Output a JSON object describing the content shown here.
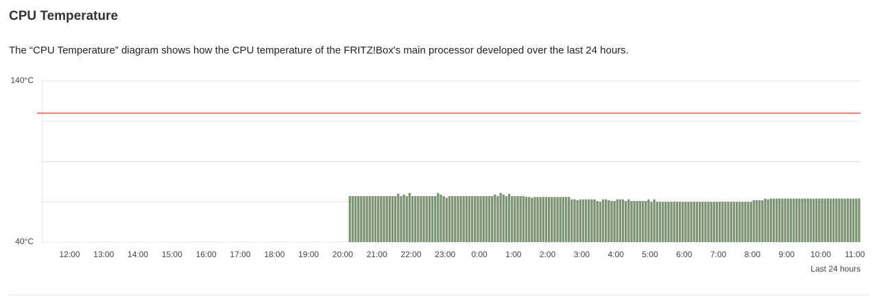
{
  "chart_data": {
    "type": "bar",
    "title": "CPU Temperature",
    "subtitle": "The “CPU Temperature” diagram shows how the CPU temperature of the FRITZ!Box's main processor developed over the last 24 hours.",
    "x_label": "Last 24 hours",
    "color": "#7b9473",
    "threshold": 120,
    "threshold_color": "#e0302c",
    "ylim": [
      40,
      140
    ],
    "yticks": [
      {
        "value": 40,
        "label": "40°C"
      },
      {
        "value": 65,
        "label": null
      },
      {
        "value": 90,
        "label": null
      },
      {
        "value": 115,
        "label": null
      },
      {
        "value": 140,
        "label": "140°C"
      }
    ],
    "grid": true,
    "categories": [
      null,
      null,
      null,
      null,
      null,
      null,
      null,
      null,
      null,
      null,
      "12:00",
      null,
      null,
      null,
      null,
      null,
      null,
      null,
      null,
      null,
      null,
      null,
      "13:00",
      null,
      null,
      null,
      null,
      null,
      null,
      null,
      null,
      null,
      null,
      null,
      "14:00",
      null,
      null,
      null,
      null,
      null,
      null,
      null,
      null,
      null,
      null,
      null,
      "15:00",
      null,
      null,
      null,
      null,
      null,
      null,
      null,
      null,
      null,
      null,
      null,
      "16:00",
      null,
      null,
      null,
      null,
      null,
      null,
      null,
      null,
      null,
      null,
      null,
      "17:00",
      null,
      null,
      null,
      null,
      null,
      null,
      null,
      null,
      null,
      null,
      null,
      "18:00",
      null,
      null,
      null,
      null,
      null,
      null,
      null,
      null,
      null,
      null,
      null,
      "19:00",
      null,
      null,
      null,
      null,
      null,
      null,
      null,
      null,
      null,
      null,
      null,
      "20:00",
      null,
      null,
      null,
      null,
      null,
      null,
      null,
      null,
      null,
      null,
      null,
      "21:00",
      null,
      null,
      null,
      null,
      null,
      null,
      null,
      null,
      null,
      null,
      null,
      "22:00",
      null,
      null,
      null,
      null,
      null,
      null,
      null,
      null,
      null,
      null,
      null,
      "23:00",
      null,
      null,
      null,
      null,
      null,
      null,
      null,
      null,
      null,
      null,
      null,
      "0:00",
      null,
      null,
      null,
      null,
      null,
      null,
      null,
      null,
      null,
      null,
      null,
      "1:00",
      null,
      null,
      null,
      null,
      null,
      null,
      null,
      null,
      null,
      null,
      null,
      "2:00",
      null,
      null,
      null,
      null,
      null,
      null,
      null,
      null,
      null,
      null,
      null,
      "3:00",
      null,
      null,
      null,
      null,
      null,
      null,
      null,
      null,
      null,
      null,
      null,
      "4:00",
      null,
      null,
      null,
      null,
      null,
      null,
      null,
      null,
      null,
      null,
      null,
      "5:00",
      null,
      null,
      null,
      null,
      null,
      null,
      null,
      null,
      null,
      null,
      null,
      "6:00",
      null,
      null,
      null,
      null,
      null,
      null,
      null,
      null,
      null,
      null,
      null,
      "7:00",
      null,
      null,
      null,
      null,
      null,
      null,
      null,
      null,
      null,
      null,
      null,
      "8:00",
      null,
      null,
      null,
      null,
      null,
      null,
      null,
      null,
      null,
      null,
      null,
      "9:00",
      null,
      null,
      null,
      null,
      null,
      null,
      null,
      null,
      null,
      null,
      null,
      "10:00",
      null,
      null,
      null,
      null,
      null,
      null,
      null,
      null,
      null,
      null,
      null,
      "11:00",
      null
    ],
    "values": [
      null,
      null,
      null,
      null,
      null,
      null,
      null,
      null,
      null,
      null,
      null,
      null,
      null,
      null,
      null,
      null,
      null,
      null,
      null,
      null,
      null,
      null,
      null,
      null,
      null,
      null,
      null,
      null,
      null,
      null,
      null,
      null,
      null,
      null,
      null,
      null,
      null,
      null,
      null,
      null,
      null,
      null,
      null,
      null,
      null,
      null,
      null,
      null,
      null,
      null,
      null,
      null,
      null,
      null,
      null,
      null,
      null,
      null,
      null,
      null,
      null,
      null,
      null,
      null,
      null,
      null,
      null,
      null,
      null,
      null,
      null,
      null,
      null,
      null,
      null,
      null,
      null,
      null,
      null,
      null,
      null,
      null,
      null,
      null,
      null,
      null,
      null,
      null,
      null,
      null,
      null,
      null,
      null,
      null,
      null,
      null,
      null,
      null,
      null,
      null,
      null,
      null,
      null,
      null,
      null,
      null,
      null,
      null,
      68.5,
      68.5,
      68.5,
      68.5,
      68.5,
      68.5,
      68.5,
      68.5,
      68.5,
      68.5,
      68.5,
      68.5,
      68.5,
      68.5,
      68.5,
      68.5,
      68.5,
      70,
      68.5,
      69.5,
      68.5,
      70.5,
      68.5,
      68.5,
      68.5,
      68.5,
      68.5,
      68.5,
      68.5,
      68.5,
      68.5,
      70.5,
      69.5,
      68.5,
      67.5,
      68.5,
      68.5,
      68.5,
      68.5,
      68.5,
      68.5,
      68.5,
      68.5,
      68.5,
      68.5,
      68.5,
      68.5,
      68.5,
      68.5,
      68.5,
      68.5,
      69.5,
      68.5,
      70.5,
      69.5,
      68.5,
      70,
      68.5,
      68.5,
      68.5,
      68.5,
      68.5,
      68,
      68,
      67.5,
      68,
      68,
      68,
      68,
      68,
      68,
      68,
      68,
      68,
      68,
      68,
      68,
      68,
      66.5,
      66.5,
      66,
      66.5,
      66.5,
      66.5,
      66.5,
      66.5,
      66.5,
      65.5,
      65,
      66.5,
      66.5,
      66,
      65.5,
      65.5,
      66.5,
      66.5,
      66.5,
      65.5,
      66.5,
      65.5,
      65.5,
      65.5,
      65.5,
      65.5,
      65.5,
      66.5,
      65,
      66.5,
      65,
      65,
      65,
      65,
      65,
      65,
      65,
      65,
      65,
      65,
      65,
      65,
      65,
      65,
      65,
      65,
      65,
      65,
      65,
      65,
      65,
      65,
      65,
      65,
      65,
      65,
      65,
      65,
      65,
      65,
      65,
      65,
      65,
      65,
      66,
      66,
      66,
      66,
      67,
      66.5,
      67,
      67,
      67,
      67,
      67,
      67,
      67,
      67,
      67,
      67,
      67,
      67,
      67,
      67,
      67,
      67,
      67,
      67,
      67,
      67,
      67,
      67,
      67,
      67,
      67,
      67,
      67,
      67,
      67,
      67,
      67,
      67
    ]
  }
}
